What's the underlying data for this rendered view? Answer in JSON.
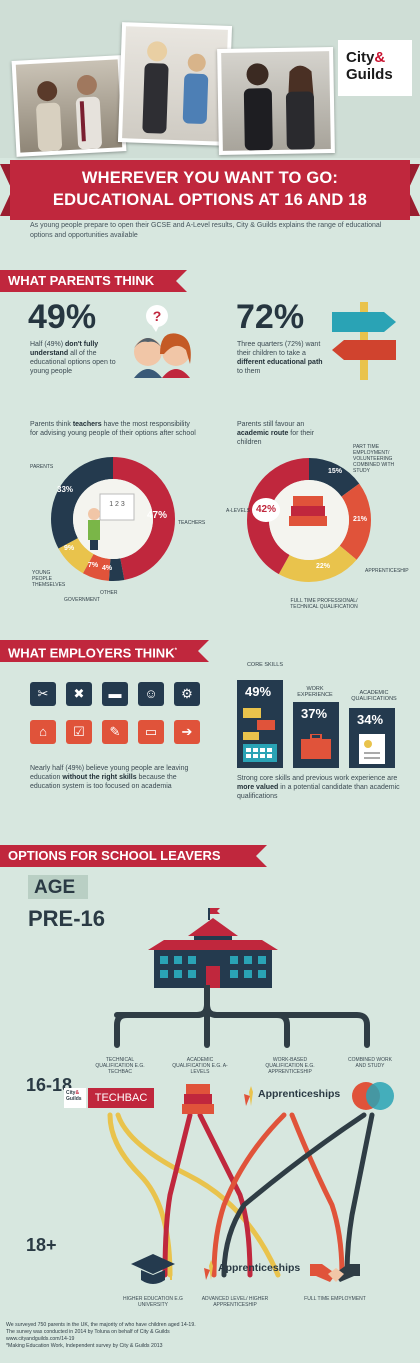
{
  "logo": {
    "line1": "City",
    "amp": "&",
    "line2": "Guilds"
  },
  "title": {
    "line1": "WHEREVER YOU WANT TO GO:",
    "line2": "EDUCATIONAL OPTIONS AT 16 AND 18"
  },
  "intro": "As young people prepare to open their GCSE and A-Level results, City & Guilds explains the range of educational options and opportunities available",
  "parents": {
    "heading": "WHAT PARENTS THINK",
    "stat1": {
      "value": "49%",
      "text_pre": "Half (49%) ",
      "text_bold": "don't fully understand",
      "text_post": " all of the educational options open to young people"
    },
    "stat2": {
      "value": "72%",
      "text_pre": "Three quarters (72%) want their children to take a ",
      "text_bold": "different educational path",
      "text_post": " to them"
    },
    "donut1": {
      "caption_pre": "Parents think ",
      "caption_bold": "teachers",
      "caption_post": " have the most responsibility for advising young people of their options after school",
      "teachers_label": "TEACHERS",
      "teachers_pct": "47%",
      "parents_label": "PARENTS",
      "parents_pct": "33%",
      "young_label": "YOUNG PEOPLE THEMSELVES",
      "young_pct": "9%",
      "gov_label": "GOVERNMENT",
      "gov_pct": "7%",
      "other_label": "OTHER",
      "other_pct": "4%"
    },
    "donut2": {
      "caption_pre": "Parents still favour an ",
      "caption_bold": "academic route",
      "caption_post": " for their children",
      "alevels_label": "A-LEVELS",
      "alevels_pct": "42%",
      "part_time_label": "PART TIME EMPLOYMENT/ VOLUNTEERING COMBINED WITH STUDY",
      "part_time_pct": "15%",
      "apprenticeship_label": "APPRENTICESHIP",
      "apprenticeship_pct": "21%",
      "fulltime_label": "FULL TIME PROFESSIONAL/ TECHNICAL QUALIFICATION",
      "fulltime_pct": "22%"
    }
  },
  "employers": {
    "heading": "WHAT EMPLOYERS THINK",
    "heading_mark": "*",
    "text_pre": "Nearly half (49%) believe young people are leaving education ",
    "text_bold": "without the right skills",
    "text_post": " because the education system is too focused on academia",
    "skills": [
      {
        "label": "CORE SKILLS",
        "pct": "49%"
      },
      {
        "label": "WORK EXPERIENCE",
        "pct": "37%"
      },
      {
        "label": "ACADEMIC QUALIFICATIONS",
        "pct": "34%"
      }
    ],
    "skills_text_pre": "Strong core skills and previous work experience are ",
    "skills_text_bold": "more valued",
    "skills_text_post": " in a potential candidate than academic qualifications"
  },
  "options": {
    "heading": "OPTIONS FOR SCHOOL LEAVERS",
    "age_label": "AGE",
    "pre16": "PRE-16",
    "age_16_18": "16-18",
    "age_18": "18+",
    "routes": [
      {
        "label": "TECHNICAL QUALIFICATION E.G. TECHBAC"
      },
      {
        "label": "ACADEMIC QUALIFICATION E.G. A-LEVELS"
      },
      {
        "label": "WORK-BASED QUALIFICATION E.G. APPRENTICESHIP"
      },
      {
        "label": "COMBINED WORK AND STUDY"
      }
    ],
    "techbac": "TECHBAC",
    "apprenticeships": "Apprenticeships",
    "outcomes": [
      {
        "label": "HIGHER EDUCATION E.G UNIVERSITY"
      },
      {
        "label": "ADVANCED LEVEL/ HIGHER APPRENTICESHIP"
      },
      {
        "label": "FULL TIME EMPLOYMENT"
      }
    ]
  },
  "footer": {
    "line1": "We surveyed 750 parents in the UK, the majority of who have children aged 14-19.",
    "line2": "The survey was conducted in 2014 by Toluna on behalf of City & Guilds",
    "line3": "www.cityandguilds.com/14-19",
    "line4": "*Making Education Work, Independent survey by City & Guilds 2013"
  },
  "colors": {
    "red": "#c0273d",
    "navy": "#243a4e",
    "orange": "#e0533a",
    "yellow": "#e9c34c",
    "teal": "#2aa3b5",
    "bg": "#d7e7df"
  }
}
